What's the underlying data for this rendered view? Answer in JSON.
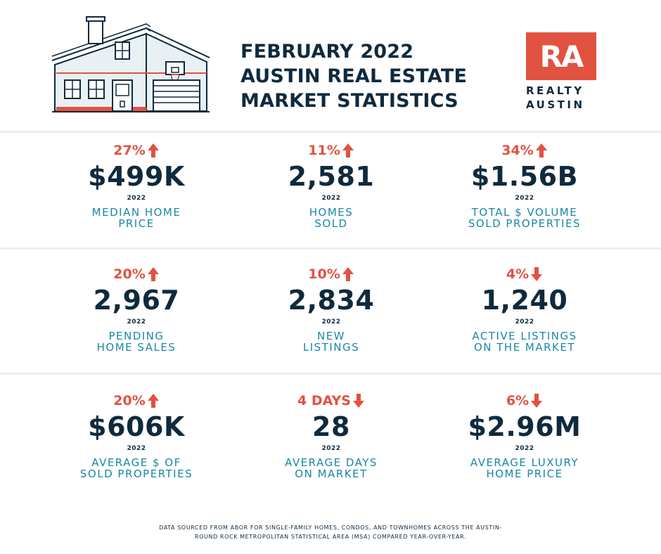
{
  "header": {
    "title_lines": [
      "FEBRUARY 2022",
      "AUSTIN REAL ESTATE",
      "MARKET STATISTICS"
    ]
  },
  "logo": {
    "mark": "RA",
    "line1": "REALTY",
    "line2": "AUSTIN"
  },
  "colors": {
    "navy": "#0f2a3d",
    "accent": "#e15241",
    "teal": "#1a86a8"
  },
  "stats": [
    {
      "change": "27%",
      "direction": "up",
      "value": "$499K",
      "year": "2022",
      "label1": "MEDIAN HOME",
      "label2": "PRICE"
    },
    {
      "change": "11%",
      "direction": "up",
      "value": "2,581",
      "year": "2022",
      "label1": "HOMES",
      "label2": "SOLD"
    },
    {
      "change": "34%",
      "direction": "up",
      "value": "$1.56B",
      "year": "2022",
      "label1": "TOTAL $ VOLUME",
      "label2": "SOLD PROPERTIES"
    },
    {
      "change": "20%",
      "direction": "up",
      "value": "2,967",
      "year": "2022",
      "label1": "PENDING",
      "label2": "HOME SALES"
    },
    {
      "change": "10%",
      "direction": "up",
      "value": "2,834",
      "year": "2022",
      "label1": "NEW",
      "label2": "LISTINGS"
    },
    {
      "change": "4%",
      "direction": "down",
      "value": "1,240",
      "year": "2022",
      "label1": "ACTIVE LISTINGS",
      "label2": "ON THE MARKET"
    },
    {
      "change": "20%",
      "direction": "up",
      "value": "$606K",
      "year": "2022",
      "label1": "AVERAGE $ OF",
      "label2": "SOLD PROPERTIES"
    },
    {
      "change": "4 DAYS",
      "direction": "down",
      "value": "28",
      "year": "2022",
      "label1": "AVERAGE DAYS",
      "label2": "ON MARKET"
    },
    {
      "change": "6%",
      "direction": "down",
      "value": "$2.96M",
      "year": "2022",
      "label1": "AVERAGE LUXURY",
      "label2": "HOME PRICE"
    }
  ],
  "footer": {
    "line1": "DATA SOURCED FROM ABOR FOR SINGLE-FAMILY HOMES, CONDOS, AND TOWNHOMES ACROSS THE AUSTIN-",
    "line2": "ROUND ROCK METROPOLITAN STATISTICAL AREA (MSA) COMPARED YEAR-OVER-YEAR."
  }
}
